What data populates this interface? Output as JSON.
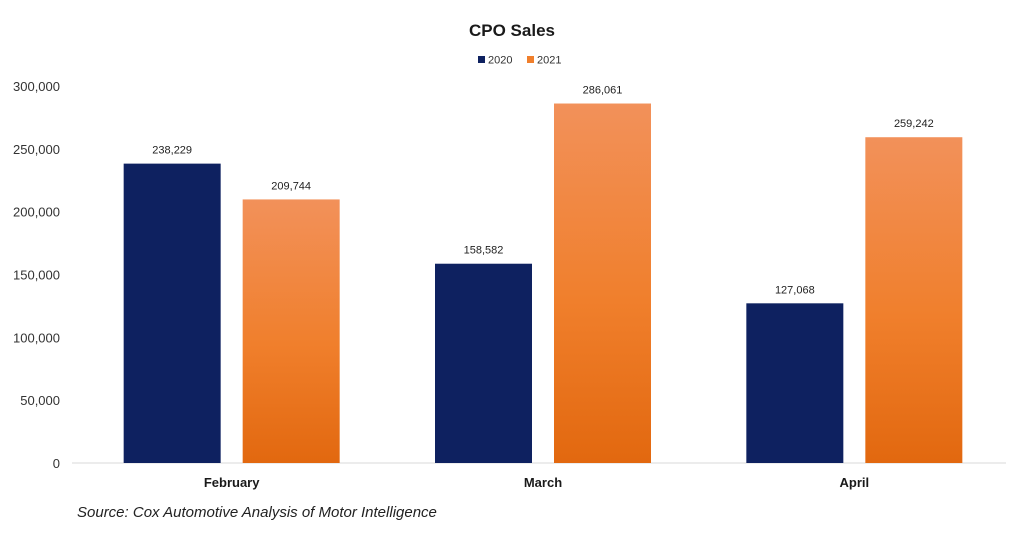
{
  "chart_data": {
    "type": "bar",
    "title": "CPO Sales",
    "categories": [
      "February",
      "March",
      "April"
    ],
    "series": [
      {
        "name": "2020",
        "values": [
          238229,
          158582,
          127068
        ],
        "labels": [
          "238,229",
          "158,582",
          "127,068"
        ],
        "color": "#0e2160"
      },
      {
        "name": "2021",
        "values": [
          209744,
          286061,
          259242
        ],
        "labels": [
          "209,744",
          "286,061",
          "259,242"
        ],
        "color": "#f07f2c"
      }
    ],
    "ylim": [
      0,
      300000
    ],
    "yticks": [
      0,
      50000,
      100000,
      150000,
      200000,
      250000,
      300000
    ],
    "ytick_labels": [
      "0",
      "50,000",
      "100,000",
      "150,000",
      "200,000",
      "250,000",
      "300,000"
    ],
    "legend_position": "top-center",
    "grid": false
  },
  "source_text": "Source: Cox Automotive Analysis of Motor Intelligence"
}
